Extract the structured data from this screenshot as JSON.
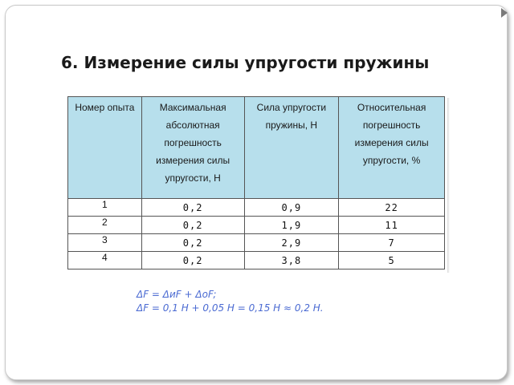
{
  "title": "6. Измерение силы упругости пружины",
  "table": {
    "headers": [
      "Номер опыта",
      "Максимальная абсолютная погрешность измерения силы упругости, Н",
      "Сила упругости пружины, Н",
      "Относительная погрешность измерения силы упругости, %"
    ],
    "rows": [
      {
        "n": "1",
        "abs_err": "0,2",
        "force": "0,9",
        "rel_err": "22"
      },
      {
        "n": "2",
        "abs_err": "0,2",
        "force": "1,9",
        "rel_err": "11"
      },
      {
        "n": "3",
        "abs_err": "0,2",
        "force": "2,9",
        "rel_err": "7"
      },
      {
        "n": "4",
        "abs_err": "0,2",
        "force": "3,8",
        "rel_err": "5"
      }
    ]
  },
  "formulas": {
    "line1": "ΔF = ΔиF + ΔоF;",
    "line2": "ΔF = 0,1 Н + 0,05 Н = 0,15 Н ≈ 0,2 Н."
  }
}
